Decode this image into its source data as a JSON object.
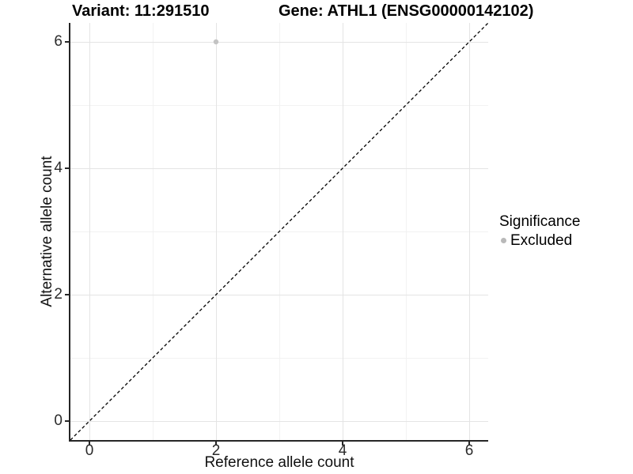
{
  "title": {
    "left": "Variant: 11:291510",
    "right": "Gene: ATHL1 (ENSG00000142102)"
  },
  "chart_data": {
    "type": "scatter",
    "title": "Variant: 11:291510   Gene: ATHL1 (ENSG00000142102)",
    "xlabel": "Reference allele count",
    "ylabel": "Alternative allele count",
    "xlim": [
      -0.3,
      6.3
    ],
    "ylim": [
      -0.3,
      6.3
    ],
    "x_ticks": [
      0,
      2,
      4,
      6
    ],
    "y_ticks": [
      0,
      2,
      4,
      6
    ],
    "minor_ticks": [
      1,
      3,
      5
    ],
    "grid": "major and minor, light gray on white panel",
    "points": [
      {
        "x": 2,
        "y": 6,
        "series": "Excluded"
      }
    ],
    "reference_line": {
      "style": "dashed",
      "slope": 1,
      "intercept": 0,
      "color": "#000000"
    },
    "legend": {
      "title": "Significance",
      "position": "right",
      "entries": [
        {
          "label": "Excluded",
          "color": "#b9b9b9"
        }
      ]
    },
    "colors": {
      "point": "#c3c3c3",
      "grid_major": "#e4e4e4",
      "grid_minor": "#f2f2f2",
      "axis": "#262626"
    }
  }
}
